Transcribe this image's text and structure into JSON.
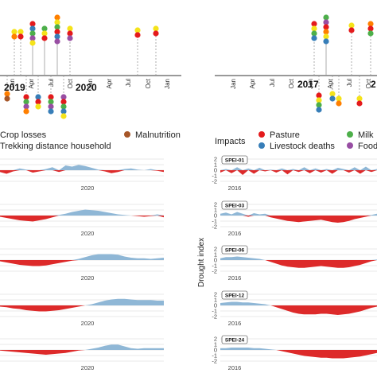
{
  "colors": {
    "pos": "#8fb7d6",
    "neg": "#dd2a2a",
    "pasture": "#e41a1c",
    "livestock": "#377eb8",
    "milk": "#4daf4a",
    "food": "#984ea3",
    "malnutrition": "#a65628",
    "yellow": "#f5e31a",
    "orange": "#ff7f00",
    "gridline": "#e3e3e3"
  },
  "left_timeline": {
    "month_labels": [
      "Jan",
      "Apr",
      "Jul",
      "Oct",
      "Jan",
      "Apr",
      "Jul",
      "Oct",
      "Jan"
    ],
    "years": [
      "2019",
      "2020"
    ]
  },
  "right_timeline": {
    "month_labels": [
      "Jan",
      "Apr",
      "Jul",
      "Oct",
      "Jan",
      "Apr",
      "Jul",
      "Oct",
      "Jan"
    ],
    "years": [
      "2017",
      "2"
    ]
  },
  "legend_left": {
    "items": [
      "Crop losses",
      "Trekking distance household",
      "Malnutrition"
    ]
  },
  "legend_right": {
    "title": "Impacts",
    "items": [
      "Pasture",
      "Livestock deaths",
      "Milk",
      "Food"
    ]
  },
  "y_axis_label": "Drought index",
  "chart_data": [
    {
      "type": "area",
      "panel": "left-drought-strips",
      "x_tick_label": "2020",
      "series": [
        {
          "values": [
            -0.3,
            -0.6,
            -0.2,
            0.3,
            0.1,
            -0.4,
            -0.2,
            0.2,
            0.5,
            -0.3,
            0.8,
            0.6,
            0.9,
            0.7,
            0.4,
            0.1,
            -0.2,
            -0.5,
            -0.3,
            0.2,
            0.3,
            0.1,
            0.0,
            0.2,
            -0.1,
            -0.3
          ]
        },
        {
          "values": [
            -0.2,
            -0.4,
            -0.6,
            -0.8,
            -0.9,
            -1.0,
            -0.8,
            -0.6,
            -0.3,
            0.1,
            0.3,
            0.6,
            0.8,
            1.0,
            0.9,
            0.8,
            0.6,
            0.4,
            0.2,
            0.1,
            0.0,
            -0.1,
            -0.2,
            -0.1,
            0.2,
            -0.3
          ]
        },
        {
          "values": [
            -0.2,
            -0.4,
            -0.6,
            -0.8,
            -0.9,
            -1.0,
            -1.0,
            -0.9,
            -0.7,
            -0.5,
            -0.3,
            -0.1,
            0.2,
            0.5,
            0.8,
            1.0,
            1.0,
            1.0,
            0.9,
            0.6,
            0.4,
            0.3,
            0.3,
            0.2,
            0.3,
            0.4
          ]
        },
        {
          "values": [
            -0.2,
            -0.3,
            -0.5,
            -0.6,
            -0.8,
            -0.9,
            -1.0,
            -1.0,
            -0.9,
            -0.8,
            -0.6,
            -0.4,
            -0.2,
            0.0,
            0.2,
            0.5,
            0.8,
            1.0,
            1.1,
            1.1,
            1.0,
            0.9,
            0.9,
            0.9,
            0.8,
            0.8
          ]
        },
        {
          "values": [
            -0.1,
            -0.2,
            -0.3,
            -0.4,
            -0.5,
            -0.6,
            -0.7,
            -0.8,
            -0.7,
            -0.6,
            -0.5,
            -0.3,
            -0.1,
            0.0,
            0.2,
            0.4,
            0.7,
            0.9,
            0.9,
            0.6,
            0.3,
            0.2,
            0.3,
            0.3,
            0.3,
            0.3
          ]
        }
      ]
    },
    {
      "type": "area",
      "panel": "right-drought-strips",
      "ylabel": "Drought index",
      "x_tick_label": "2016",
      "y_ticks": [
        "2",
        "1",
        "0",
        "-1",
        "-2"
      ],
      "series": [
        {
          "name": "SPEI-01",
          "values": [
            -0.4,
            0.2,
            -0.5,
            0.5,
            -0.8,
            0.3,
            -0.6,
            0.4,
            -0.2,
            0.1,
            -0.4,
            0.3,
            -0.7,
            0.2,
            -0.3,
            0.5,
            -0.5,
            0.3,
            -0.4,
            0.2,
            -0.6,
            0.4,
            0.2,
            -0.4,
            0.5,
            -0.6,
            0.6,
            -0.3,
            0.2
          ]
        },
        {
          "name": "SPEI-03",
          "values": [
            0.3,
            0.5,
            0.2,
            0.6,
            0.3,
            -0.2,
            0.4,
            0.2,
            0.3,
            -0.3,
            -0.5,
            -0.7,
            -0.9,
            -1.0,
            -1.1,
            -1.0,
            -0.9,
            -0.8,
            -0.7,
            -0.9,
            -1.1,
            -1.2,
            -1.1,
            -0.9,
            -0.6,
            -0.4,
            -0.2,
            0.1,
            0.3
          ]
        },
        {
          "name": "SPEI-06",
          "values": [
            0.3,
            0.5,
            0.5,
            0.6,
            0.5,
            0.4,
            0.3,
            0.2,
            0.0,
            -0.3,
            -0.6,
            -0.9,
            -1.1,
            -1.2,
            -1.3,
            -1.3,
            -1.2,
            -1.1,
            -1.0,
            -1.1,
            -1.2,
            -1.3,
            -1.3,
            -1.2,
            -1.0,
            -0.8,
            -0.5,
            -0.2,
            0.1
          ]
        },
        {
          "name": "SPEI-12",
          "values": [
            0.4,
            0.5,
            0.6,
            0.6,
            0.5,
            0.5,
            0.4,
            0.3,
            0.2,
            0.0,
            -0.3,
            -0.6,
            -0.9,
            -1.2,
            -1.4,
            -1.5,
            -1.5,
            -1.5,
            -1.4,
            -1.4,
            -1.5,
            -1.6,
            -1.5,
            -1.4,
            -1.2,
            -1.0,
            -0.7,
            -0.4,
            -0.2
          ]
        },
        {
          "name": "SPEI-24",
          "values": [
            0.3,
            0.3,
            0.4,
            0.4,
            0.4,
            0.4,
            0.3,
            0.3,
            0.2,
            0.1,
            0.0,
            -0.2,
            -0.4,
            -0.6,
            -0.8,
            -1.0,
            -1.1,
            -1.2,
            -1.3,
            -1.3,
            -1.4,
            -1.4,
            -1.4,
            -1.3,
            -1.2,
            -1.1,
            -0.9,
            -0.7,
            -0.5
          ]
        }
      ]
    }
  ]
}
